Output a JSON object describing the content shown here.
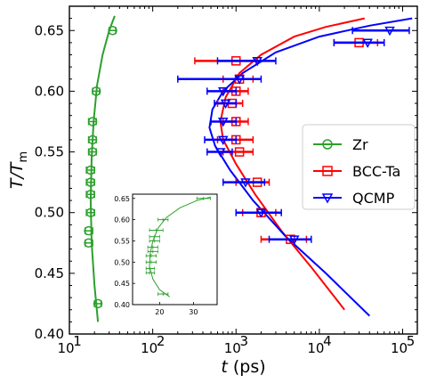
{
  "chart_data": [
    {
      "type": "scatter",
      "xscale": "log",
      "xlim": [
        10,
        150000
      ],
      "ylim": [
        0.4,
        0.67
      ],
      "xlabel_italic": "t",
      "xlabel_unit": " (ps)",
      "ylabel_main": "T/T",
      "ylabel_sub": "m",
      "xticks": [
        {
          "value": 10,
          "base": "10",
          "exp": "1"
        },
        {
          "value": 100,
          "base": "10",
          "exp": "2"
        },
        {
          "value": 1000,
          "base": "10",
          "exp": "3"
        },
        {
          "value": 10000,
          "base": "10",
          "exp": "4"
        },
        {
          "value": 100000,
          "base": "10",
          "exp": "5"
        }
      ],
      "yticks": [
        "0.40",
        "0.45",
        "0.50",
        "0.55",
        "0.60",
        "0.65"
      ],
      "grid": false,
      "legend_position": "right",
      "colors": {
        "Zr": "#2ca02c",
        "BCC-Ta": "#ff0000",
        "QCMP": "#0000ff"
      },
      "series": [
        {
          "name": "Zr",
          "marker": "circle",
          "points": [
            {
              "x": 33,
              "y": 0.65,
              "xerr_lo": 30,
              "xerr_hi": 36
            },
            {
              "x": 21,
              "y": 0.6,
              "xerr_lo": 19,
              "xerr_hi": 23
            },
            {
              "x": 19,
              "y": 0.575,
              "xerr_lo": 17,
              "xerr_hi": 21
            },
            {
              "x": 19,
              "y": 0.56,
              "xerr_lo": 17,
              "xerr_hi": 21
            },
            {
              "x": 19,
              "y": 0.55,
              "xerr_lo": 17,
              "xerr_hi": 21
            },
            {
              "x": 18,
              "y": 0.535,
              "xerr_lo": 16,
              "xerr_hi": 20
            },
            {
              "x": 18,
              "y": 0.525,
              "xerr_lo": 16,
              "xerr_hi": 20
            },
            {
              "x": 18,
              "y": 0.515,
              "xerr_lo": 16,
              "xerr_hi": 20
            },
            {
              "x": 18,
              "y": 0.5,
              "xerr_lo": 16,
              "xerr_hi": 20
            },
            {
              "x": 17,
              "y": 0.485,
              "xerr_lo": 15.5,
              "xerr_hi": 19
            },
            {
              "x": 17,
              "y": 0.475,
              "xerr_lo": 15.5,
              "xerr_hi": 19
            },
            {
              "x": 22,
              "y": 0.425,
              "xerr_lo": 20,
              "xerr_hi": 24
            }
          ],
          "fit": [
            [
              22,
              0.41
            ],
            [
              20,
              0.44
            ],
            [
              18.5,
              0.475
            ],
            [
              18,
              0.51
            ],
            [
              18.5,
              0.545
            ],
            [
              19.5,
              0.575
            ],
            [
              21.5,
              0.605
            ],
            [
              25,
              0.63
            ],
            [
              30,
              0.65
            ],
            [
              35,
              0.662
            ]
          ]
        },
        {
          "name": "BCC-Ta",
          "marker": "square",
          "points": [
            {
              "x": 30000,
              "y": 0.64,
              "xerr_lo": 15000,
              "xerr_hi": 50000
            },
            {
              "x": 1000,
              "y": 0.625,
              "xerr_lo": 320,
              "xerr_hi": 1800
            },
            {
              "x": 1100,
              "y": 0.61,
              "xerr_lo": 700,
              "xerr_hi": 1600
            },
            {
              "x": 1000,
              "y": 0.6,
              "xerr_lo": 700,
              "xerr_hi": 1400
            },
            {
              "x": 900,
              "y": 0.59,
              "xerr_lo": 600,
              "xerr_hi": 1200
            },
            {
              "x": 1000,
              "y": 0.575,
              "xerr_lo": 700,
              "xerr_hi": 1400
            },
            {
              "x": 1000,
              "y": 0.56,
              "xerr_lo": 600,
              "xerr_hi": 1600
            },
            {
              "x": 1100,
              "y": 0.55,
              "xerr_lo": 700,
              "xerr_hi": 1600
            },
            {
              "x": 1800,
              "y": 0.525,
              "xerr_lo": 1000,
              "xerr_hi": 2500
            },
            {
              "x": 2000,
              "y": 0.5,
              "xerr_lo": 1200,
              "xerr_hi": 3000
            },
            {
              "x": 4500,
              "y": 0.478,
              "xerr_lo": 2000,
              "xerr_hi": 7000
            }
          ],
          "fit": [
            [
              20000,
              0.42
            ],
            [
              8000,
              0.455
            ],
            [
              3500,
              0.485
            ],
            [
              1700,
              0.515
            ],
            [
              1000,
              0.54
            ],
            [
              700,
              0.56
            ],
            [
              650,
              0.575
            ],
            [
              750,
              0.595
            ],
            [
              1100,
              0.615
            ],
            [
              2000,
              0.63
            ],
            [
              5000,
              0.645
            ],
            [
              12000,
              0.653
            ],
            [
              35000,
              0.66
            ]
          ]
        },
        {
          "name": "QCMP",
          "marker": "triangle-down",
          "points": [
            {
              "x": 70000,
              "y": 0.65,
              "xerr_lo": 25000,
              "xerr_hi": 120000
            },
            {
              "x": 38000,
              "y": 0.64,
              "xerr_lo": 15000,
              "xerr_hi": 60000
            },
            {
              "x": 1800,
              "y": 0.625,
              "xerr_lo": 600,
              "xerr_hi": 3000
            },
            {
              "x": 1100,
              "y": 0.61,
              "xerr_lo": 200,
              "xerr_hi": 2000
            },
            {
              "x": 700,
              "y": 0.6,
              "xerr_lo": 450,
              "xerr_hi": 1000
            },
            {
              "x": 750,
              "y": 0.59,
              "xerr_lo": 550,
              "xerr_hi": 1000
            },
            {
              "x": 700,
              "y": 0.575,
              "xerr_lo": 500,
              "xerr_hi": 1000
            },
            {
              "x": 700,
              "y": 0.56,
              "xerr_lo": 420,
              "xerr_hi": 1000
            },
            {
              "x": 650,
              "y": 0.55,
              "xerr_lo": 450,
              "xerr_hi": 900
            },
            {
              "x": 1300,
              "y": 0.525,
              "xerr_lo": 700,
              "xerr_hi": 2200
            },
            {
              "x": 2000,
              "y": 0.5,
              "xerr_lo": 1000,
              "xerr_hi": 3500
            },
            {
              "x": 5000,
              "y": 0.478,
              "xerr_lo": 2500,
              "xerr_hi": 8000
            }
          ],
          "fit": [
            [
              40000,
              0.415
            ],
            [
              12000,
              0.45
            ],
            [
              4000,
              0.48
            ],
            [
              1600,
              0.51
            ],
            [
              850,
              0.535
            ],
            [
              560,
              0.555
            ],
            [
              480,
              0.57
            ],
            [
              520,
              0.585
            ],
            [
              700,
              0.6
            ],
            [
              1200,
              0.615
            ],
            [
              3000,
              0.632
            ],
            [
              10000,
              0.645
            ],
            [
              40000,
              0.654
            ],
            [
              130000,
              0.66
            ]
          ]
        }
      ]
    },
    {
      "type": "scatter",
      "role": "inset",
      "xlim": [
        12,
        37
      ],
      "ylim": [
        0.4,
        0.66
      ],
      "xticks": [
        "20",
        "30"
      ],
      "yticks": [
        "0.40",
        "0.45",
        "0.50",
        "0.55",
        "0.60",
        "0.65"
      ],
      "series": [
        {
          "name": "Zr",
          "points": [
            {
              "x": 33,
              "y": 0.65,
              "xerr_lo": 31,
              "xerr_hi": 35
            },
            {
              "x": 21,
              "y": 0.6,
              "xerr_lo": 19.5,
              "xerr_hi": 22.5
            },
            {
              "x": 19,
              "y": 0.575,
              "xerr_lo": 17,
              "xerr_hi": 21
            },
            {
              "x": 18.5,
              "y": 0.56,
              "xerr_lo": 17,
              "xerr_hi": 20
            },
            {
              "x": 18.5,
              "y": 0.55,
              "xerr_lo": 17,
              "xerr_hi": 20
            },
            {
              "x": 18,
              "y": 0.535,
              "xerr_lo": 16.5,
              "xerr_hi": 19.5
            },
            {
              "x": 18,
              "y": 0.525,
              "xerr_lo": 16.5,
              "xerr_hi": 19.5
            },
            {
              "x": 17.5,
              "y": 0.515,
              "xerr_lo": 16,
              "xerr_hi": 19
            },
            {
              "x": 17.5,
              "y": 0.5,
              "xerr_lo": 16,
              "xerr_hi": 19
            },
            {
              "x": 17,
              "y": 0.485,
              "xerr_lo": 16,
              "xerr_hi": 18.5
            },
            {
              "x": 17,
              "y": 0.475,
              "xerr_lo": 16,
              "xerr_hi": 18.5
            },
            {
              "x": 21,
              "y": 0.425,
              "xerr_lo": 19.5,
              "xerr_hi": 22.5
            }
          ],
          "fit": [
            [
              23,
              0.418
            ],
            [
              20,
              0.435
            ],
            [
              18,
              0.46
            ],
            [
              17,
              0.49
            ],
            [
              17.2,
              0.52
            ],
            [
              18,
              0.55
            ],
            [
              19.5,
              0.58
            ],
            [
              22,
              0.605
            ],
            [
              26,
              0.628
            ],
            [
              31,
              0.645
            ],
            [
              35,
              0.653
            ]
          ]
        }
      ]
    }
  ]
}
